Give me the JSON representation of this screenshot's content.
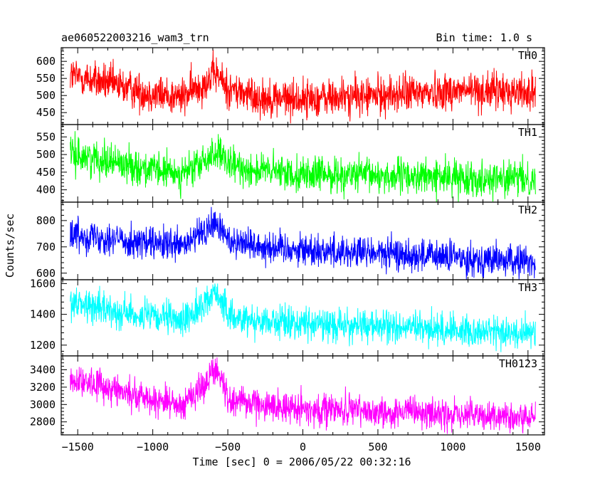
{
  "chart_data": {
    "type": "line",
    "title": "ae060522003216_wam3_trn",
    "subtitle": "Bin time: 1.0 s",
    "xlabel": "Time [sec] 0 = 2006/05/22 00:32:16",
    "ylabel": "Counts/sec",
    "xlim": [
      -1610,
      1610
    ],
    "x_ticks": [
      -1500,
      -1000,
      -500,
      0,
      500,
      1000,
      1500
    ],
    "x_tick_labels": [
      "−1500",
      "−1000",
      "−500",
      "0",
      "500",
      "1000",
      "1500"
    ],
    "x_range": [
      -1550,
      1550
    ],
    "burst_peak_x": -580,
    "series": [
      {
        "name": "TH0",
        "color": "#ff0000",
        "ylim": [
          415,
          640
        ],
        "y_ticks": [
          450,
          500,
          550,
          600
        ],
        "trend_x": [
          -1550,
          -1300,
          -1000,
          -800,
          -650,
          -580,
          -500,
          -300,
          0,
          500,
          1000,
          1550
        ],
        "trend_y": [
          560,
          535,
          505,
          495,
          540,
          565,
          520,
          495,
          490,
          500,
          515,
          510
        ],
        "noise": 40
      },
      {
        "name": "TH1",
        "color": "#00ff00",
        "ylim": [
          365,
          585
        ],
        "y_ticks": [
          400,
          450,
          500,
          550
        ],
        "trend_x": [
          -1550,
          -1300,
          -1000,
          -800,
          -650,
          -580,
          -500,
          -300,
          0,
          500,
          1000,
          1550
        ],
        "trend_y": [
          500,
          485,
          455,
          445,
          480,
          510,
          470,
          455,
          445,
          440,
          435,
          430
        ],
        "noise": 35
      },
      {
        "name": "TH2",
        "color": "#0000ff",
        "ylim": [
          575,
          870
        ],
        "y_ticks": [
          600,
          700,
          800
        ],
        "trend_x": [
          -1550,
          -1300,
          -1000,
          -800,
          -650,
          -580,
          -500,
          -300,
          0,
          500,
          1000,
          1550
        ],
        "trend_y": [
          750,
          735,
          710,
          700,
          760,
          790,
          730,
          705,
          690,
          675,
          660,
          640
        ],
        "noise": 45
      },
      {
        "name": "TH3",
        "color": "#00ffff",
        "ylim": [
          1130,
          1625
        ],
        "y_ticks": [
          1200,
          1400,
          1600
        ],
        "trend_x": [
          -1550,
          -1300,
          -1000,
          -800,
          -650,
          -580,
          -500,
          -300,
          0,
          500,
          1000,
          1550
        ],
        "trend_y": [
          1480,
          1430,
          1380,
          1360,
          1470,
          1560,
          1390,
          1360,
          1340,
          1320,
          1300,
          1270
        ],
        "noise": 75
      },
      {
        "name": "TH0123",
        "color": "#ff00ff",
        "ylim": [
          2650,
          3560
        ],
        "y_ticks": [
          2800,
          3000,
          3200,
          3400
        ],
        "trend_x": [
          -1550,
          -1300,
          -1000,
          -800,
          -650,
          -580,
          -500,
          -300,
          0,
          500,
          1000,
          1550
        ],
        "trend_y": [
          3300,
          3200,
          3060,
          3000,
          3250,
          3420,
          3080,
          3000,
          2950,
          2920,
          2880,
          2840
        ],
        "noise": 130
      }
    ]
  }
}
